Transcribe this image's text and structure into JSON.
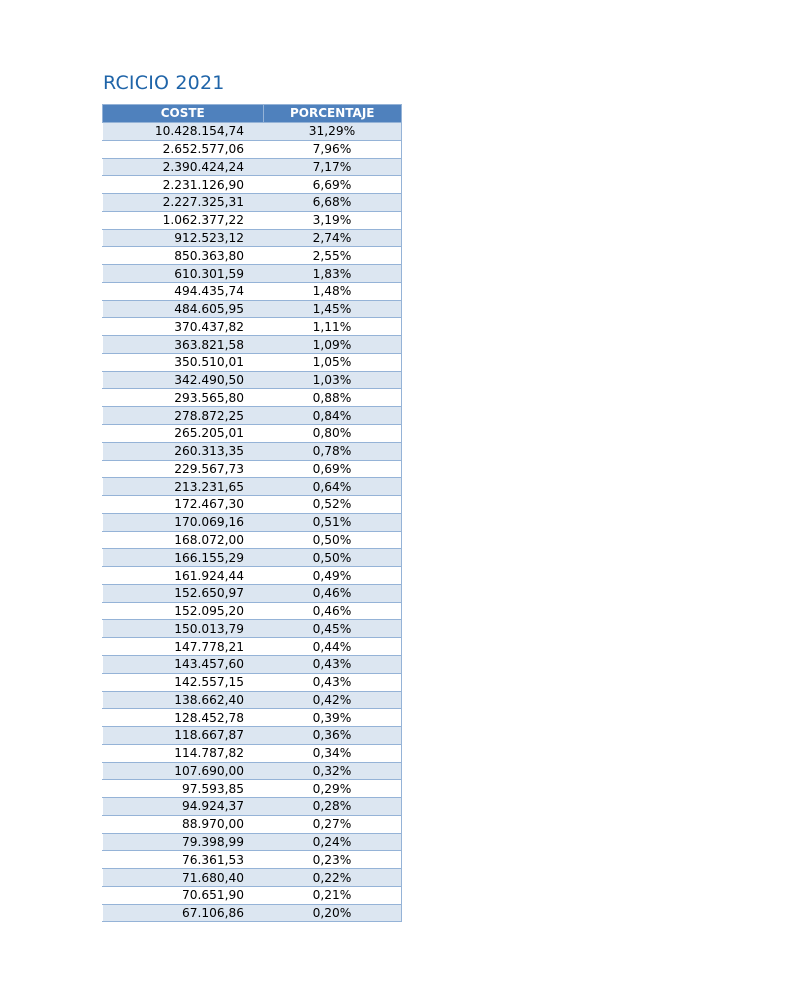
{
  "title": "RCICIO 2021",
  "columns": {
    "cost": "COSTE",
    "percent": "PORCENTAJE"
  },
  "colors": {
    "header": "#4f81bd",
    "band": "#dce6f1",
    "border": "#95b3d7",
    "title": "#1f64a8"
  },
  "rows": [
    [
      "10.428.154,74",
      "31,29%"
    ],
    [
      "2.652.577,06",
      "7,96%"
    ],
    [
      "2.390.424,24",
      "7,17%"
    ],
    [
      "2.231.126,90",
      "6,69%"
    ],
    [
      "2.227.325,31",
      "6,68%"
    ],
    [
      "1.062.377,22",
      "3,19%"
    ],
    [
      "912.523,12",
      "2,74%"
    ],
    [
      "850.363,80",
      "2,55%"
    ],
    [
      "610.301,59",
      "1,83%"
    ],
    [
      "494.435,74",
      "1,48%"
    ],
    [
      "484.605,95",
      "1,45%"
    ],
    [
      "370.437,82",
      "1,11%"
    ],
    [
      "363.821,58",
      "1,09%"
    ],
    [
      "350.510,01",
      "1,05%"
    ],
    [
      "342.490,50",
      "1,03%"
    ],
    [
      "293.565,80",
      "0,88%"
    ],
    [
      "278.872,25",
      "0,84%"
    ],
    [
      "265.205,01",
      "0,80%"
    ],
    [
      "260.313,35",
      "0,78%"
    ],
    [
      "229.567,73",
      "0,69%"
    ],
    [
      "213.231,65",
      "0,64%"
    ],
    [
      "172.467,30",
      "0,52%"
    ],
    [
      "170.069,16",
      "0,51%"
    ],
    [
      "168.072,00",
      "0,50%"
    ],
    [
      "166.155,29",
      "0,50%"
    ],
    [
      "161.924,44",
      "0,49%"
    ],
    [
      "152.650,97",
      "0,46%"
    ],
    [
      "152.095,20",
      "0,46%"
    ],
    [
      "150.013,79",
      "0,45%"
    ],
    [
      "147.778,21",
      "0,44%"
    ],
    [
      "143.457,60",
      "0,43%"
    ],
    [
      "142.557,15",
      "0,43%"
    ],
    [
      "138.662,40",
      "0,42%"
    ],
    [
      "128.452,78",
      "0,39%"
    ],
    [
      "118.667,87",
      "0,36%"
    ],
    [
      "114.787,82",
      "0,34%"
    ],
    [
      "107.690,00",
      "0,32%"
    ],
    [
      "97.593,85",
      "0,29%"
    ],
    [
      "94.924,37",
      "0,28%"
    ],
    [
      "88.970,00",
      "0,27%"
    ],
    [
      "79.398,99",
      "0,24%"
    ],
    [
      "76.361,53",
      "0,23%"
    ],
    [
      "71.680,40",
      "0,22%"
    ],
    [
      "70.651,90",
      "0,21%"
    ],
    [
      "67.106,86",
      "0,20%"
    ]
  ]
}
